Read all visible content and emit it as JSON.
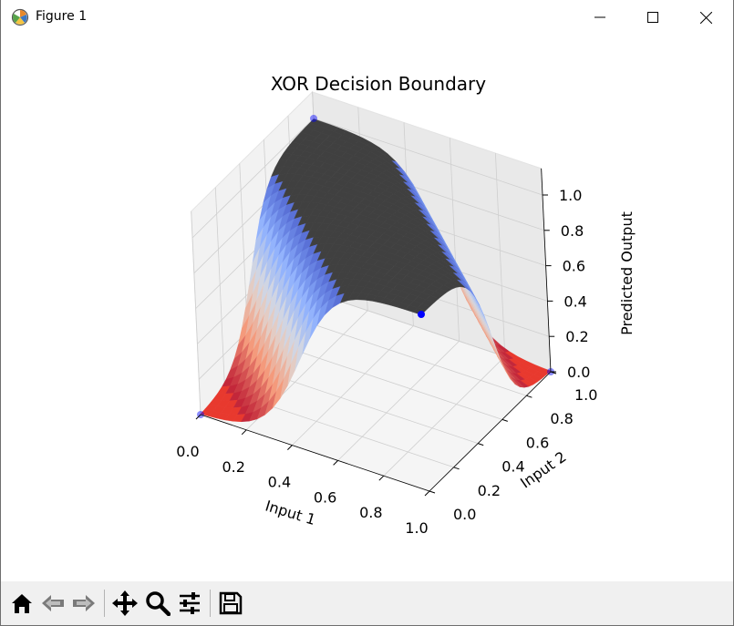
{
  "window": {
    "title": "Figure 1",
    "app_icon": "matplotlib-icon",
    "controls": [
      "minimize-icon",
      "maximize-icon",
      "close-icon"
    ]
  },
  "toolbar": {
    "buttons": [
      {
        "name": "home-icon",
        "tooltip": "Reset original view"
      },
      {
        "name": "back-arrow-icon",
        "tooltip": "Back to previous view"
      },
      {
        "name": "forward-arrow-icon",
        "tooltip": "Forward to next view"
      },
      {
        "name": "pan-icon",
        "tooltip": "Pan axes"
      },
      {
        "name": "zoom-icon",
        "tooltip": "Zoom to rectangle"
      },
      {
        "name": "configure-subplots-icon",
        "tooltip": "Configure subplots"
      },
      {
        "name": "save-icon",
        "tooltip": "Save the figure"
      }
    ]
  },
  "chart_data": {
    "type": "surface3d",
    "title": "XOR Decision Boundary",
    "xlabel": "Input 1",
    "ylabel": "Input 2",
    "zlabel": "Predicted Output",
    "xlim": [
      0.0,
      1.0
    ],
    "ylim": [
      0.0,
      1.0
    ],
    "zlim": [
      0.0,
      1.0
    ],
    "x_ticks": [
      "0.0",
      "0.2",
      "0.4",
      "0.6",
      "0.8",
      "1.0"
    ],
    "y_ticks": [
      "0.0",
      "0.2",
      "0.4",
      "0.6",
      "0.8",
      "1.0"
    ],
    "z_ticks": [
      "0.0",
      "0.2",
      "0.4",
      "0.6",
      "0.8",
      "1.0"
    ],
    "colormap": "coolwarm",
    "grid": true,
    "points": [
      {
        "x": 0,
        "y": 0,
        "z": 0,
        "color": "#0000ff"
      },
      {
        "x": 0,
        "y": 1,
        "z": 1,
        "color": "#0000ff"
      },
      {
        "x": 1,
        "y": 0,
        "z": 1,
        "color": "#0000ff"
      },
      {
        "x": 1,
        "y": 1,
        "z": 0,
        "color": "#0000ff"
      }
    ]
  }
}
